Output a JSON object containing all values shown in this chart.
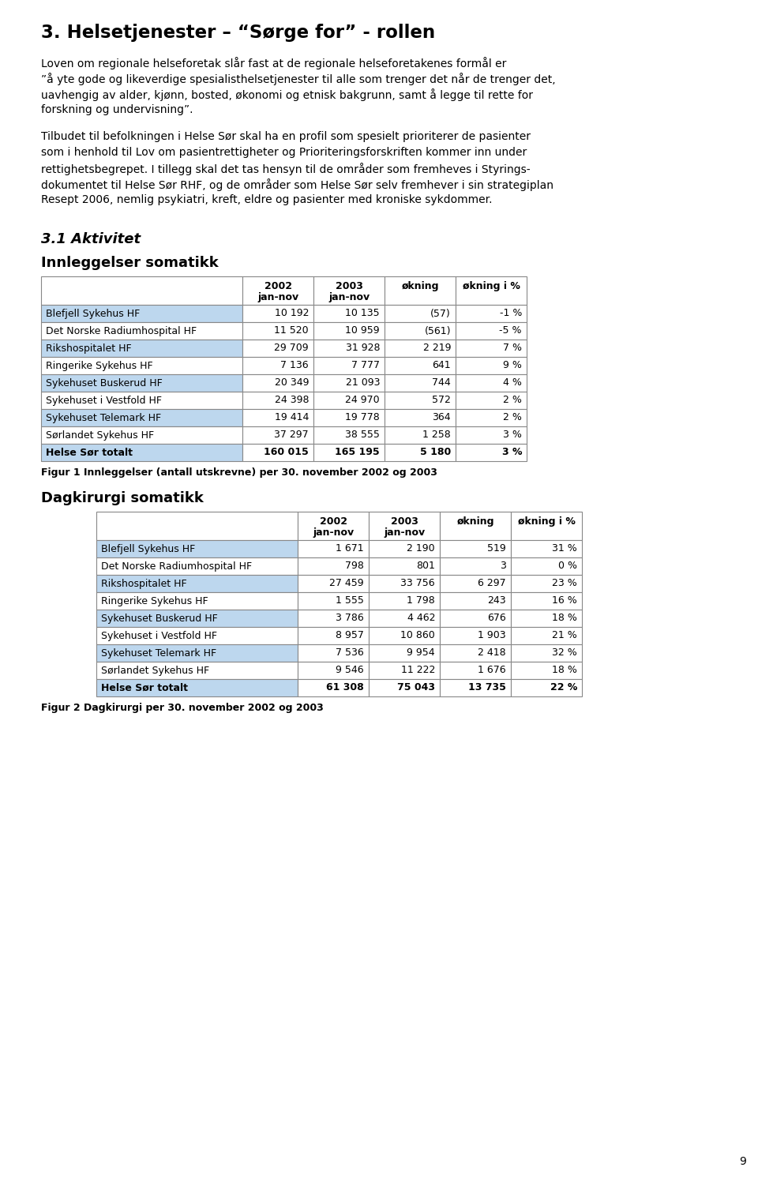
{
  "title": "3. Helsetjenester – “Sørge for” - rollen",
  "para1_lines": [
    "Loven om regionale helseforetak slår fast at de regionale helseforetakenes formål er",
    "”å yte gode og likeverdige spesialisthelsetjenester til alle som trenger det når de trenger det,",
    "uavhengig av alder, kjønn, bosted, økonomi og etnisk bakgrunn, samt å legge til rette for",
    "forskning og undervisning”."
  ],
  "para2_lines": [
    "Tilbudet til befolkningen i Helse Sør skal ha en profil som spesielt prioriterer de pasienter",
    "som i henhold til Lov om pasientrettigheter og Prioriteringsforskriften kommer inn under",
    "rettighetsbegrepet. I tillegg skal det tas hensyn til de områder som fremheves i Styrings-",
    "dokumentet til Helse Sør RHF, og de områder som Helse Sør selv fremhever i sin strategiplan",
    "Resept 2006, nemlig psykiatri, kreft, eldre og pasienter med kroniske sykdommer."
  ],
  "section_title": "3.1 Aktivitet",
  "table1_title": "Innleggelser somatikk",
  "table1_col_headers": [
    "2002\njan-nov",
    "2003\njan-nov",
    "økning",
    "økning i %"
  ],
  "table1_rows": [
    [
      "Blefjell Sykehus HF",
      "10 192",
      "10 135",
      "(57)",
      "-1 %"
    ],
    [
      "Det Norske Radiumhospital HF",
      "11 520",
      "10 959",
      "(561)",
      "-5 %"
    ],
    [
      "Rikshospitalet HF",
      "29 709",
      "31 928",
      "2 219",
      "7 %"
    ],
    [
      "Ringerike Sykehus HF",
      "7 136",
      "7 777",
      "641",
      "9 %"
    ],
    [
      "Sykehuset Buskerud HF",
      "20 349",
      "21 093",
      "744",
      "4 %"
    ],
    [
      "Sykehuset i Vestfold HF",
      "24 398",
      "24 970",
      "572",
      "2 %"
    ],
    [
      "Sykehuset Telemark HF",
      "19 414",
      "19 778",
      "364",
      "2 %"
    ],
    [
      "Sørlandet Sykehus HF",
      "37 297",
      "38 555",
      "1 258",
      "3 %"
    ],
    [
      "Helse Sør totalt",
      "160 015",
      "165 195",
      "5 180",
      "3 %"
    ]
  ],
  "table1_caption": "Figur 1 Innleggelser (antall utskrevne) per 30. november 2002 og 2003",
  "table2_title": "Dagkirurgi somatikk",
  "table2_col_headers": [
    "2002\njan-nov",
    "2003\njan-nov",
    "økning",
    "økning i %"
  ],
  "table2_rows": [
    [
      "Blefjell Sykehus HF",
      "1 671",
      "2 190",
      "519",
      "31 %"
    ],
    [
      "Det Norske Radiumhospital HF",
      "798",
      "801",
      "3",
      "0 %"
    ],
    [
      "Rikshospitalet HF",
      "27 459",
      "33 756",
      "6 297",
      "23 %"
    ],
    [
      "Ringerike Sykehus HF",
      "1 555",
      "1 798",
      "243",
      "16 %"
    ],
    [
      "Sykehuset Buskerud HF",
      "3 786",
      "4 462",
      "676",
      "18 %"
    ],
    [
      "Sykehuset i Vestfold HF",
      "8 957",
      "10 860",
      "1 903",
      "21 %"
    ],
    [
      "Sykehuset Telemark HF",
      "7 536",
      "9 954",
      "2 418",
      "32 %"
    ],
    [
      "Sørlandet Sykehus HF",
      "9 546",
      "11 222",
      "1 676",
      "18 %"
    ],
    [
      "Helse Sør totalt",
      "61 308",
      "75 043",
      "13 735",
      "22 %"
    ]
  ],
  "table2_caption": "Figur 2 Dagkirurgi per 30. november 2002 og 2003",
  "page_number": "9",
  "bg_color": "#ffffff",
  "row_bg_blue": "#bdd7ee",
  "text_color": "#000000"
}
